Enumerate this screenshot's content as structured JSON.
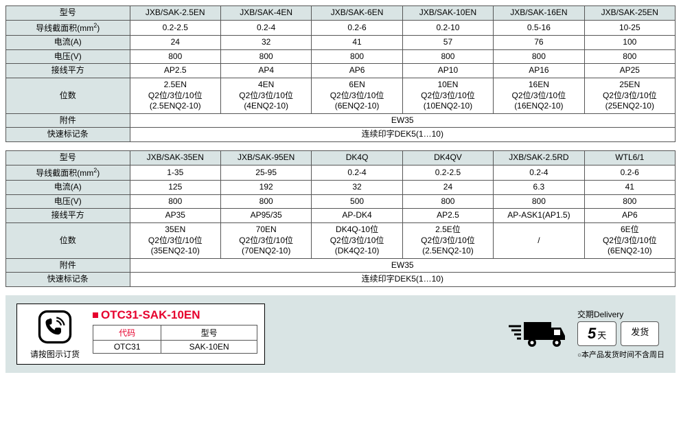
{
  "tables": [
    {
      "colors": {
        "header_bg": "#d9e4e4",
        "border": "#555555"
      },
      "columns": [
        "JXB/SAK-2.5EN",
        "JXB/SAK-4EN",
        "JXB/SAK-6EN",
        "JXB/SAK-10EN",
        "JXB/SAK-16EN",
        "JXB/SAK-25EN"
      ],
      "rows": [
        {
          "label": "型号",
          "header": true
        },
        {
          "label": "导线截面积(mm²)",
          "values": [
            "0.2-2.5",
            "0.2-4",
            "0.2-6",
            "0.2-10",
            "0.5-16",
            "10-25"
          ]
        },
        {
          "label": "电流(A)",
          "values": [
            "24",
            "32",
            "41",
            "57",
            "76",
            "100"
          ]
        },
        {
          "label": "电压(V)",
          "values": [
            "800",
            "800",
            "800",
            "800",
            "800",
            "800"
          ]
        },
        {
          "label": "接线平方",
          "values": [
            "AP2.5",
            "AP4",
            "AP6",
            "AP10",
            "AP16",
            "AP25"
          ]
        },
        {
          "label": "位数",
          "multiline": true,
          "values": [
            "2.5EN\nQ2位/3位/10位\n(2.5ENQ2-10)",
            "4EN\nQ2位/3位/10位\n(4ENQ2-10)",
            "6EN\nQ2位/3位/10位\n(6ENQ2-10)",
            "10EN\nQ2位/3位/10位\n(10ENQ2-10)",
            "16EN\nQ2位/3位/10位\n(16ENQ2-10)",
            "25EN\nQ2位/3位/10位\n(25ENQ2-10)"
          ]
        },
        {
          "label": "附件",
          "span": "EW35"
        },
        {
          "label": "快速标记条",
          "span": "连续印字DEK5(1…10)"
        }
      ]
    },
    {
      "colors": {
        "header_bg": "#d9e4e4",
        "border": "#555555"
      },
      "columns": [
        "JXB/SAK-35EN",
        "JXB/SAK-95EN",
        "DK4Q",
        "DK4QV",
        "JXB/SAK-2.5RD",
        "WTL6/1"
      ],
      "rows": [
        {
          "label": "型号",
          "header": true
        },
        {
          "label": "导线截面积(mm²)",
          "values": [
            "1-35",
            "25-95",
            "0.2-4",
            "0.2-2.5",
            "0.2-4",
            "0.2-6"
          ]
        },
        {
          "label": "电流(A)",
          "values": [
            "125",
            "192",
            "32",
            "24",
            "6.3",
            "41"
          ]
        },
        {
          "label": "电压(V)",
          "values": [
            "800",
            "800",
            "500",
            "800",
            "800",
            "800"
          ]
        },
        {
          "label": "接线平方",
          "values": [
            "AP35",
            "AP95/35",
            "AP-DK4",
            "AP2.5",
            "AP-ASK1(AP1.5)",
            "AP6"
          ]
        },
        {
          "label": "位数",
          "multiline": true,
          "values": [
            "35EN\nQ2位/3位/10位\n(35ENQ2-10)",
            "70EN\nQ2位/3位/10位\n(70ENQ2-10)",
            "DK4Q-10位\nQ2位/3位/10位\n(DK4Q2-10)",
            "2.5E位\nQ2位/3位/10位\n(2.5ENQ2-10)",
            "/",
            "6E位\nQ2位/3位/10位\n(6ENQ2-10)"
          ]
        },
        {
          "label": "附件",
          "span": "EW35"
        },
        {
          "label": "快速标记条",
          "span": "连续印字DEK5(1…10)"
        }
      ]
    }
  ],
  "order": {
    "instruction": "请按图示订货",
    "product_code": "OTC31-SAK-10EN",
    "code_header": "代码",
    "model_header": "型号",
    "code_value": "OTC31",
    "model_value": "SAK-10EN",
    "accent_color": "#e6002d"
  },
  "delivery": {
    "label": "交期Delivery",
    "days": "5",
    "days_unit": "天",
    "ship": "发货",
    "note_prefix": "○",
    "note": "本产品发货时间不含周日"
  }
}
